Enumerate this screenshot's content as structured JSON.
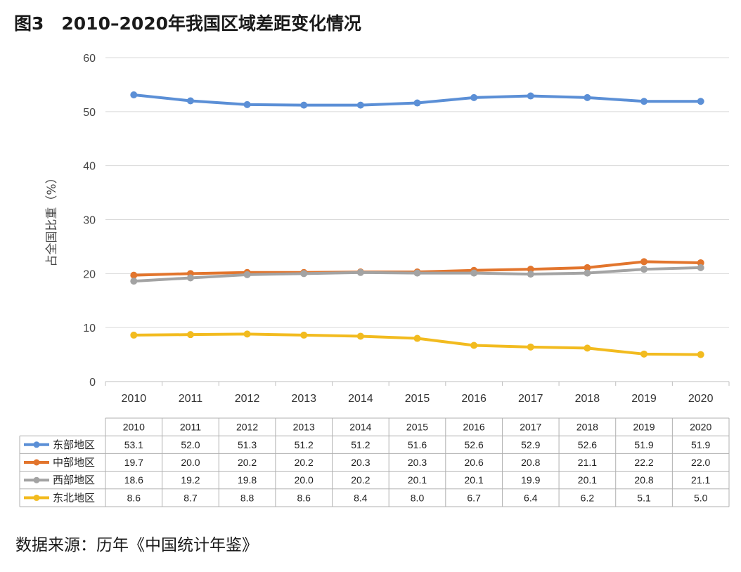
{
  "figure": {
    "title": "图3　2010–2020年我国区域差距变化情况",
    "source": "数据来源：历年《中国统计年鉴》"
  },
  "chart_data": {
    "type": "line",
    "title": "图3　2010–2020年我国区域差距变化情况",
    "xlabel": "",
    "ylabel": "占全国比重（%）",
    "ylim": [
      0,
      60
    ],
    "yticks": [
      0,
      10,
      20,
      30,
      40,
      50,
      60
    ],
    "grid": true,
    "legend": "data-table",
    "categories": [
      "2010",
      "2011",
      "2012",
      "2013",
      "2014",
      "2015",
      "2016",
      "2017",
      "2018",
      "2019",
      "2020"
    ],
    "series": [
      {
        "name": "东部地区",
        "color": "#5b8fd6",
        "values": [
          53.1,
          52.0,
          51.3,
          51.2,
          51.2,
          51.6,
          52.6,
          52.9,
          52.6,
          51.9,
          51.9
        ]
      },
      {
        "name": "中部地区",
        "color": "#e2752d",
        "values": [
          19.7,
          20.0,
          20.2,
          20.2,
          20.3,
          20.3,
          20.6,
          20.8,
          21.1,
          22.2,
          22.0
        ]
      },
      {
        "name": "西部地区",
        "color": "#a3a3a3",
        "values": [
          18.6,
          19.2,
          19.8,
          20.0,
          20.2,
          20.1,
          20.1,
          19.9,
          20.1,
          20.8,
          21.1
        ]
      },
      {
        "name": "东北地区",
        "color": "#f2bb1f",
        "values": [
          8.6,
          8.7,
          8.8,
          8.6,
          8.4,
          8.0,
          6.7,
          6.4,
          6.2,
          5.1,
          5.0
        ]
      }
    ],
    "table_labels": [
      "53.1",
      "52.0",
      "51.3",
      "51.2",
      "51.2",
      "51.6",
      "52.6",
      "52.9",
      "52.6",
      "51.9",
      "51.9",
      "19.7",
      "20.0",
      "20.2",
      "20.2",
      "20.3",
      "20.3",
      "20.6",
      "20.8",
      "21.1",
      "22.2",
      "22.0",
      "18.6",
      "19.2",
      "19.8",
      "20.0",
      "20.2",
      "20.1",
      "20.1",
      "19.9",
      "20.1",
      "20.8",
      "21.1",
      "8.6",
      "8.7",
      "8.8",
      "8.6",
      "8.4",
      "8.0",
      "6.7",
      "6.4",
      "6.2",
      "5.1",
      "5.0"
    ]
  }
}
